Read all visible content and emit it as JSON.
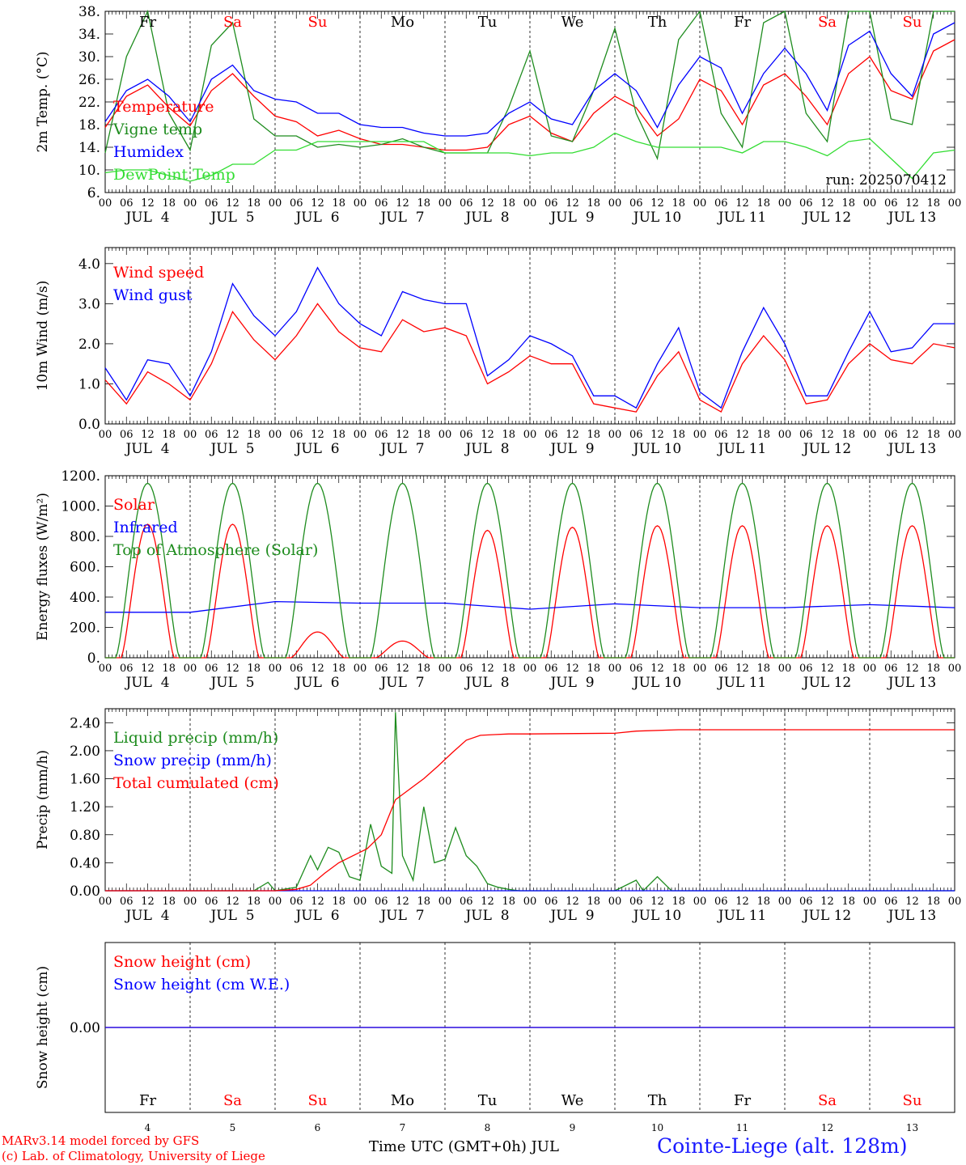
{
  "colors": {
    "red": "#ff0000",
    "green": "#1e8c1e",
    "blue": "#0000ff",
    "lime": "#33dd33",
    "axis": "#000000"
  },
  "days": [
    {
      "abbr": "Fr",
      "num": "4",
      "date": "JUL  4",
      "weekend": false
    },
    {
      "abbr": "Sa",
      "num": "5",
      "date": "JUL  5",
      "weekend": true
    },
    {
      "abbr": "Su",
      "num": "6",
      "date": "JUL  6",
      "weekend": true
    },
    {
      "abbr": "Mo",
      "num": "7",
      "date": "JUL  7",
      "weekend": false
    },
    {
      "abbr": "Tu",
      "num": "8",
      "date": "JUL  8",
      "weekend": false
    },
    {
      "abbr": "We",
      "num": "9",
      "date": "JUL  9",
      "weekend": false
    },
    {
      "abbr": "Th",
      "num": "10",
      "date": "JUL 10",
      "weekend": false
    },
    {
      "abbr": "Fr",
      "num": "11",
      "date": "JUL 11",
      "weekend": false
    },
    {
      "abbr": "Sa",
      "num": "12",
      "date": "JUL 12",
      "weekend": true
    },
    {
      "abbr": "Su",
      "num": "13",
      "date": "JUL 13",
      "weekend": true
    }
  ],
  "hour_ticks": [
    "00",
    "06",
    "12",
    "18"
  ],
  "footer": {
    "credit1": "MARv3.14 model forced by GFS",
    "credit2": "(c) Lab. of Climatology, University of Liege",
    "xlabel": "Time UTC (GMT+0h) JUL",
    "station": "Cointe-Liege (alt. 128m)"
  },
  "chart_data": [
    {
      "type": "line",
      "ylabel": "2m Temp. (°C)",
      "ylim": [
        6,
        38
      ],
      "yticks": [
        "6.",
        "10.",
        "14.",
        "18.",
        "22.",
        "26.",
        "30.",
        "34.",
        "38."
      ],
      "ytick_values": [
        6,
        10,
        14,
        18,
        22,
        26,
        30,
        34,
        38
      ],
      "annotation": "run: 2025070412",
      "series": [
        {
          "name": "Temperature",
          "color": "red",
          "x": [
            0,
            6,
            12,
            18,
            24,
            30,
            36,
            42,
            48,
            54,
            60,
            66,
            72,
            78,
            84,
            90,
            96,
            102,
            108,
            114,
            120,
            126,
            132,
            138,
            144,
            150,
            156,
            162,
            168,
            174,
            180,
            186,
            192,
            198,
            204,
            210,
            216,
            222,
            228,
            234,
            240
          ],
          "y": [
            17.5,
            23,
            25,
            21,
            17.8,
            24,
            27,
            23,
            19.5,
            18.5,
            16,
            17,
            15.5,
            14.5,
            14.5,
            14,
            13.5,
            13.5,
            14,
            18,
            19.5,
            16.5,
            15,
            20,
            23,
            21,
            16,
            19,
            26,
            24,
            18,
            25,
            27,
            23,
            18,
            27,
            30,
            24,
            22.5,
            31,
            33
          ]
        },
        {
          "name": "Vigne temp",
          "color": "green",
          "x": [
            0,
            6,
            12,
            18,
            24,
            30,
            36,
            42,
            48,
            54,
            60,
            66,
            72,
            78,
            84,
            90,
            96,
            102,
            108,
            114,
            120,
            126,
            132,
            138,
            144,
            150,
            156,
            162,
            168,
            174,
            180,
            186,
            192,
            198,
            204,
            210,
            216,
            222,
            228,
            234,
            240
          ],
          "y": [
            13,
            30,
            38,
            20,
            13.5,
            32,
            36,
            19,
            16,
            16,
            14,
            14.5,
            14,
            14.5,
            15.5,
            14,
            13,
            13,
            13,
            21,
            31,
            16,
            15,
            24,
            35,
            20,
            12,
            33,
            38,
            20,
            14,
            36,
            38,
            20,
            15,
            38,
            38,
            19,
            18,
            38,
            38
          ]
        },
        {
          "name": "Humidex",
          "color": "blue",
          "x": [
            0,
            6,
            12,
            18,
            24,
            30,
            36,
            42,
            48,
            54,
            60,
            66,
            72,
            78,
            84,
            90,
            96,
            102,
            108,
            114,
            120,
            126,
            132,
            138,
            144,
            150,
            156,
            162,
            168,
            174,
            180,
            186,
            192,
            198,
            204,
            210,
            216,
            222,
            228,
            234,
            240
          ],
          "y": [
            18.5,
            24,
            26,
            23,
            18.5,
            26,
            28.5,
            24,
            22.5,
            22,
            20,
            20,
            18,
            17.5,
            17.5,
            16.5,
            16,
            16,
            16.5,
            20,
            22,
            19,
            18,
            24,
            27,
            24,
            17.5,
            25,
            30,
            28,
            20,
            27,
            31.5,
            27,
            20.5,
            32,
            34.5,
            27,
            23,
            34,
            36
          ]
        },
        {
          "name": "DewPoint Temp",
          "color": "lime",
          "x": [
            0,
            6,
            12,
            18,
            24,
            30,
            36,
            42,
            48,
            54,
            60,
            66,
            72,
            78,
            84,
            90,
            96,
            102,
            108,
            114,
            120,
            126,
            132,
            138,
            144,
            150,
            156,
            162,
            168,
            174,
            180,
            186,
            192,
            198,
            204,
            210,
            216,
            222,
            228,
            234,
            240
          ],
          "y": [
            9.5,
            10,
            10,
            9,
            8,
            9,
            11,
            11,
            13.5,
            13.5,
            15,
            15,
            15,
            15,
            15,
            15,
            13,
            13,
            13,
            13,
            12.5,
            13,
            13,
            14,
            16.5,
            15,
            14,
            14,
            14,
            14,
            13,
            15,
            15,
            14,
            12.5,
            15,
            15.5,
            12,
            8.5,
            13,
            13.5
          ]
        }
      ]
    },
    {
      "type": "line",
      "ylabel": "10m Wind (m/s)",
      "ylim": [
        0,
        4.4
      ],
      "yticks": [
        "0.0",
        "1.0",
        "2.0",
        "3.0",
        "4.0"
      ],
      "ytick_values": [
        0,
        1,
        2,
        3,
        4
      ],
      "series": [
        {
          "name": "Wind speed",
          "color": "red",
          "x": [
            0,
            6,
            12,
            18,
            24,
            30,
            36,
            42,
            48,
            54,
            60,
            66,
            72,
            78,
            84,
            90,
            96,
            102,
            108,
            114,
            120,
            126,
            132,
            138,
            144,
            150,
            156,
            162,
            168,
            174,
            180,
            186,
            192,
            198,
            204,
            210,
            216,
            222,
            228,
            234,
            240
          ],
          "y": [
            1.1,
            0.5,
            1.3,
            1,
            0.6,
            1.5,
            2.8,
            2.1,
            1.6,
            2.2,
            3,
            2.3,
            1.9,
            1.8,
            2.6,
            2.3,
            2.4,
            2.2,
            1,
            1.3,
            1.7,
            1.5,
            1.5,
            0.5,
            0.4,
            0.3,
            1.2,
            1.8,
            0.6,
            0.3,
            1.5,
            2.2,
            1.6,
            0.5,
            0.6,
            1.5,
            2,
            1.6,
            1.5,
            2,
            1.9
          ]
        },
        {
          "name": "Wind gust",
          "color": "blue",
          "x": [
            0,
            6,
            12,
            18,
            24,
            30,
            36,
            42,
            48,
            54,
            60,
            66,
            72,
            78,
            84,
            90,
            96,
            102,
            108,
            114,
            120,
            126,
            132,
            138,
            144,
            150,
            156,
            162,
            168,
            174,
            180,
            186,
            192,
            198,
            204,
            210,
            216,
            222,
            228,
            234,
            240
          ],
          "y": [
            1.4,
            0.6,
            1.6,
            1.5,
            0.7,
            1.8,
            3.5,
            2.7,
            2.2,
            2.8,
            3.9,
            3,
            2.5,
            2.2,
            3.3,
            3.1,
            3,
            3,
            1.2,
            1.6,
            2.2,
            2,
            1.7,
            0.7,
            0.7,
            0.4,
            1.5,
            2.4,
            0.8,
            0.4,
            1.8,
            2.9,
            2,
            0.7,
            0.7,
            1.8,
            2.8,
            1.8,
            1.9,
            2.5,
            2.5
          ]
        }
      ]
    },
    {
      "type": "line",
      "ylabel": "Energy fluxes (W/m²)",
      "ylim": [
        0,
        1200
      ],
      "yticks": [
        "0.",
        "200.",
        "400.",
        "600.",
        "800.",
        "1000.",
        "1200."
      ],
      "ytick_values": [
        0,
        200,
        400,
        600,
        800,
        1000,
        1200
      ],
      "series": [
        {
          "name": "Solar",
          "color": "red",
          "daily_peak": [
            880,
            880,
            170,
            110,
            840,
            860,
            870,
            870,
            870,
            870
          ]
        },
        {
          "name": "Infrared",
          "color": "blue",
          "x": [
            0,
            24,
            48,
            72,
            96,
            120,
            144,
            168,
            192,
            216,
            240
          ],
          "y": [
            300,
            300,
            370,
            360,
            360,
            320,
            355,
            330,
            330,
            350,
            330
          ]
        },
        {
          "name": "Top of Atmosphere (Solar)",
          "color": "green",
          "daily_peak": [
            1150,
            1150,
            1150,
            1150,
            1150,
            1150,
            1150,
            1150,
            1150,
            1150
          ]
        }
      ]
    },
    {
      "type": "line",
      "ylabel": "Precip (mm/h)",
      "ylim": [
        0,
        2.6
      ],
      "yticks": [
        "0.00",
        "0.40",
        "0.80",
        "1.20",
        "1.60",
        "2.00",
        "2.40"
      ],
      "ytick_values": [
        0,
        0.4,
        0.8,
        1.2,
        1.6,
        2.0,
        2.4
      ],
      "series": [
        {
          "name": "Liquid precip (mm/h)",
          "color": "green",
          "x": [
            0,
            42,
            46,
            48,
            54,
            58,
            60,
            63,
            66,
            69,
            72,
            75,
            78,
            81,
            82,
            84,
            87,
            90,
            93,
            96,
            99,
            102,
            105,
            108,
            111,
            114,
            117,
            120,
            144,
            150,
            152,
            156,
            160,
            240
          ],
          "y": [
            0,
            0,
            0.12,
            0,
            0.05,
            0.5,
            0.3,
            0.62,
            0.55,
            0.2,
            0.15,
            0.95,
            0.35,
            0.25,
            2.55,
            0.5,
            0.15,
            1.2,
            0.4,
            0.45,
            0.9,
            0.5,
            0.35,
            0.1,
            0.05,
            0.02,
            0,
            0,
            0,
            0.15,
            0,
            0.2,
            0,
            0
          ]
        },
        {
          "name": "Snow precip (mm/h)",
          "color": "blue",
          "x": [
            0,
            240
          ],
          "y": [
            0,
            0
          ]
        },
        {
          "name": "Total cumulated (cm)",
          "color": "red",
          "x": [
            0,
            48,
            54,
            58,
            62,
            66,
            70,
            74,
            78,
            82,
            86,
            90,
            94,
            98,
            102,
            106,
            110,
            114,
            120,
            144,
            150,
            162,
            240
          ],
          "y": [
            0,
            0,
            0.02,
            0.08,
            0.25,
            0.4,
            0.5,
            0.6,
            0.8,
            1.3,
            1.45,
            1.6,
            1.78,
            1.97,
            2.15,
            2.22,
            2.23,
            2.24,
            2.24,
            2.25,
            2.28,
            2.3,
            2.3
          ]
        }
      ]
    },
    {
      "type": "line",
      "ylabel": "Snow height (cm)",
      "ylim": [
        -1,
        1
      ],
      "yticks": [
        "0.00"
      ],
      "ytick_values": [
        0
      ],
      "series": [
        {
          "name": "Snow height (cm)",
          "color": "red",
          "x": [
            0,
            240
          ],
          "y": [
            0,
            0
          ]
        },
        {
          "name": "Snow height (cm W.E.)",
          "color": "blue",
          "x": [
            0,
            240
          ],
          "y": [
            0,
            0
          ]
        }
      ]
    }
  ]
}
